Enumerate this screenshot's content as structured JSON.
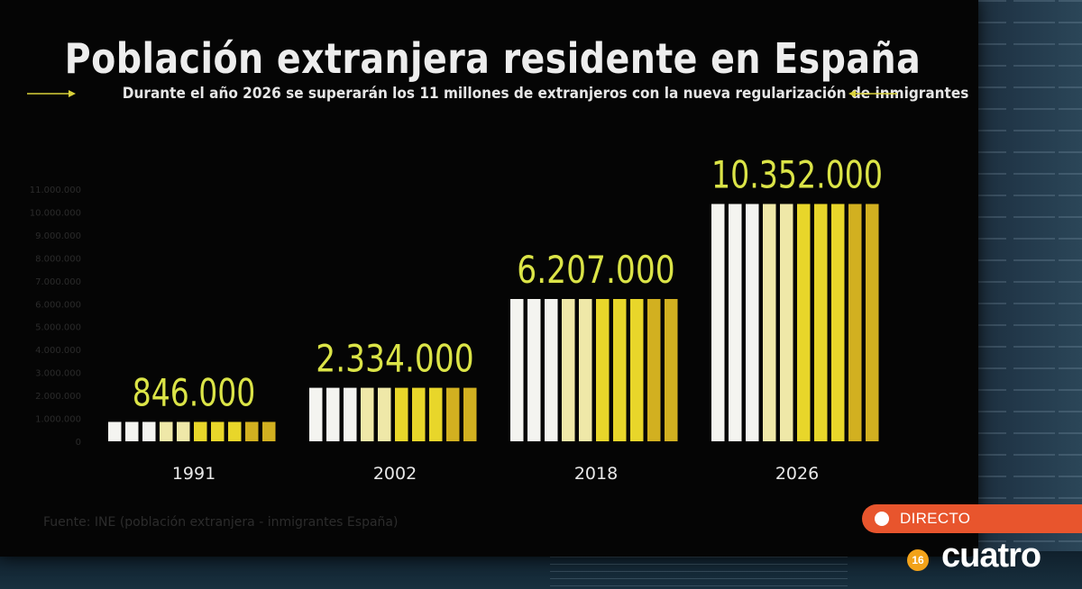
{
  "chart_data": {
    "type": "bar",
    "title": "Población extranjera residente en España",
    "subtitle": "Durante el año 2026 se superarán los 11 millones de extranjeros con la nueva regularización de inmigrantes",
    "categories": [
      "1991",
      "2002",
      "2018",
      "2026"
    ],
    "values": [
      846000,
      2334000,
      6207000,
      10352000
    ],
    "value_labels": [
      "846.000",
      "2.334.000",
      "6.207.000",
      "10.352.000"
    ],
    "xlabel": "",
    "ylabel": "",
    "ylim": [
      0,
      11000000
    ],
    "axis_ticks": [
      "11.000.000",
      "10.000.000",
      "9.000.000",
      "8.000.000",
      "7.000.000",
      "6.000.000",
      "5.000.000",
      "4.000.000",
      "3.000.000",
      "2.000.000",
      "1.000.000",
      "0"
    ],
    "grid": false,
    "legend": "none",
    "source_note": "Fuente: INE (población extranjera - inmigrantes España)",
    "colors": {
      "label": "#dbe447",
      "bar_light": "#f4f4f0",
      "bar_yellow": "#e8d62a",
      "bar_dark": "#caa61e",
      "background": "#050505"
    }
  },
  "overlay": {
    "live_label": "DIRECTO",
    "channel_number": "16",
    "channel_name": "cuatro"
  }
}
